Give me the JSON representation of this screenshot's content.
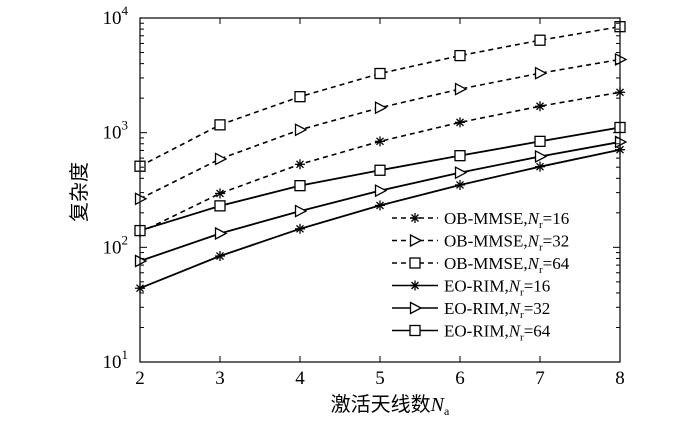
{
  "chart_data": {
    "type": "line",
    "xlabel": {
      "main": "激活天线数",
      "var": "N",
      "sub": "a"
    },
    "ylabel": "复杂度",
    "x": [
      2,
      3,
      4,
      5,
      6,
      7,
      8
    ],
    "xlim": [
      2,
      8
    ],
    "ylim": [
      10,
      10000
    ],
    "yscale": "log",
    "x_ticks": [
      "2",
      "3",
      "4",
      "5",
      "6",
      "7",
      "8"
    ],
    "y_ticks": [
      {
        "value": 10,
        "base": "10",
        "exp": "1"
      },
      {
        "value": 100,
        "base": "10",
        "exp": "2"
      },
      {
        "value": 1000,
        "base": "10",
        "exp": "3"
      },
      {
        "value": 10000,
        "base": "10",
        "exp": "4"
      }
    ],
    "grid": false,
    "legend_position": "bottom-right",
    "series": [
      {
        "name": "OB-MMSE,",
        "var": "N",
        "sub": "r",
        "val": "=16",
        "dash": true,
        "marker": "asterisk",
        "values": [
          135,
          295,
          530,
          840,
          1230,
          1700,
          2250
        ]
      },
      {
        "name": "OB-MMSE,",
        "var": "N",
        "sub": "r",
        "val": "=32",
        "dash": true,
        "marker": "triangle",
        "values": [
          265,
          590,
          1060,
          1650,
          2400,
          3300,
          4350
        ]
      },
      {
        "name": "OB-MMSE,",
        "var": "N",
        "sub": "r",
        "val": "=64",
        "dash": true,
        "marker": "square",
        "values": [
          510,
          1170,
          2060,
          3280,
          4700,
          6400,
          8400
        ]
      },
      {
        "name": "EO-RIM,",
        "var": "N",
        "sub": "r",
        "val": "=16",
        "dash": false,
        "marker": "asterisk",
        "values": [
          44,
          84,
          145,
          232,
          350,
          505,
          710
        ]
      },
      {
        "name": "EO-RIM,",
        "var": "N",
        "sub": "r",
        "val": "=32",
        "dash": false,
        "marker": "triangle",
        "values": [
          76,
          132,
          207,
          312,
          448,
          620,
          830
        ]
      },
      {
        "name": "EO-RIM,",
        "var": "N",
        "sub": "r",
        "val": "=64",
        "dash": false,
        "marker": "square",
        "values": [
          140,
          230,
          345,
          470,
          630,
          840,
          1110
        ]
      }
    ]
  }
}
